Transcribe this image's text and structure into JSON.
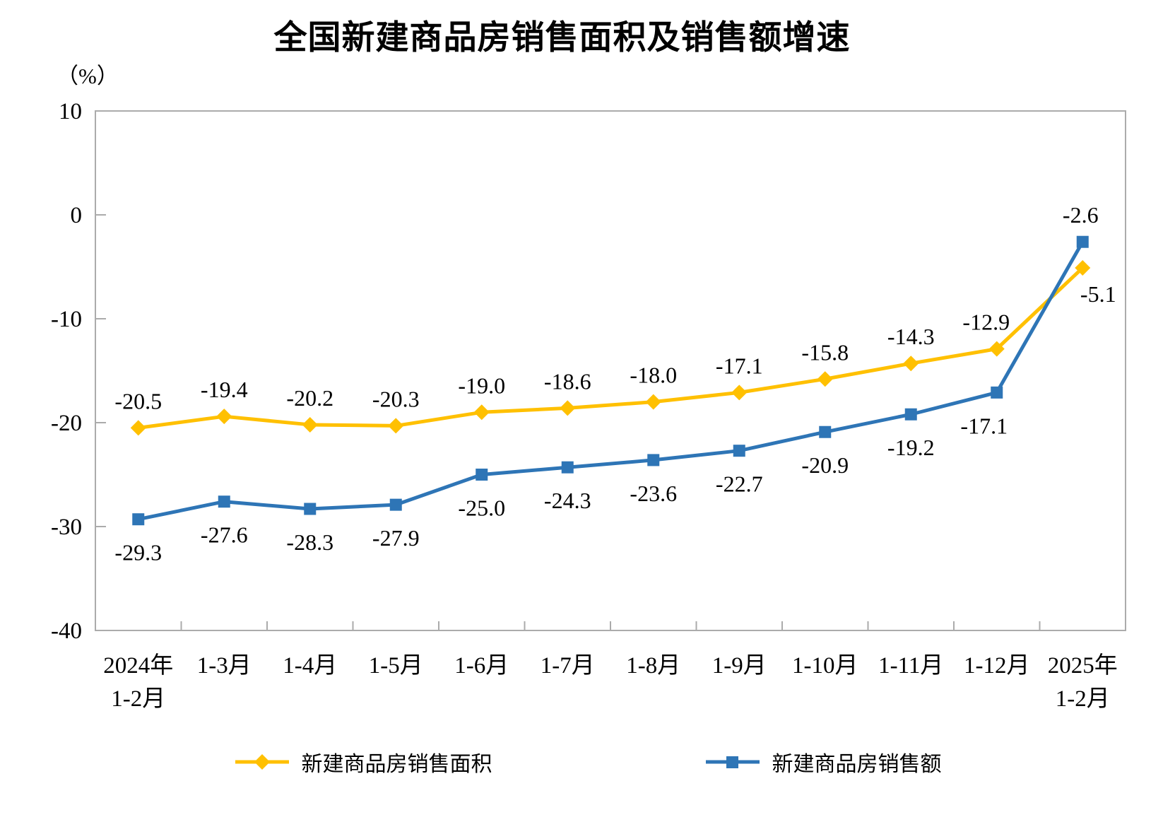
{
  "chart_data": {
    "type": "line",
    "title": "全国新建商品房销售面积及销售额增速",
    "ylabel_unit": "（%）",
    "ylim": [
      -40,
      10
    ],
    "yticks": [
      10,
      0,
      -10,
      -20,
      -30,
      -40
    ],
    "grid": false,
    "legend_position": "bottom",
    "axis_color": "#ababab",
    "text_color": "#000000",
    "categories": [
      [
        "2024年",
        "1-2月"
      ],
      "1-3月",
      "1-4月",
      "1-5月",
      "1-6月",
      "1-7月",
      "1-8月",
      "1-9月",
      "1-10月",
      "1-11月",
      "1-12月",
      [
        "2025年",
        "1-2月"
      ]
    ],
    "series": [
      {
        "name": "新建商品房销售面积",
        "color": "#FFC000",
        "marker": "diamond",
        "label_position": "above",
        "values": [
          -20.5,
          -19.4,
          -20.2,
          -20.3,
          -19.0,
          -18.6,
          -18.0,
          -17.1,
          -15.8,
          -14.3,
          -12.9,
          -5.1
        ]
      },
      {
        "name": "新建商品房销售额",
        "color": "#2E75B6",
        "marker": "square",
        "label_position": "below",
        "values": [
          -29.3,
          -27.6,
          -28.3,
          -27.9,
          -25.0,
          -24.3,
          -23.6,
          -22.7,
          -20.9,
          -19.2,
          -17.1,
          -2.6
        ]
      }
    ]
  }
}
